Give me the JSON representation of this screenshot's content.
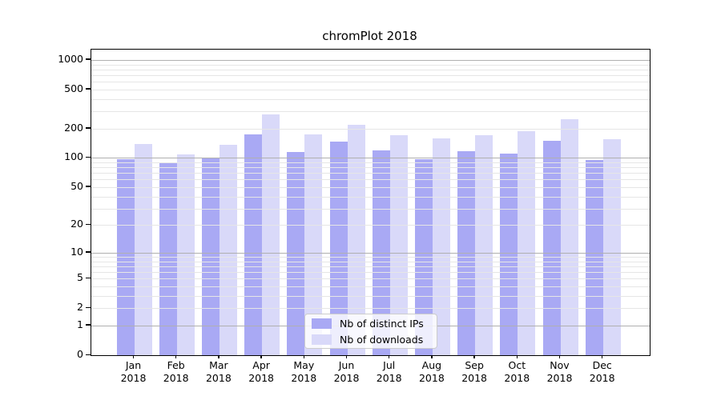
{
  "title": "chromPlot 2018",
  "colors": {
    "ips": "#a9a9f4",
    "downloads": "#d9d9f9",
    "grid_major": "#b0b0b0",
    "grid_minor": "#e6e6e6",
    "spine": "#000000",
    "legend_border": "#cccccc"
  },
  "legend": {
    "items": [
      {
        "label": "Nb of distinct IPs",
        "color_key": "ips"
      },
      {
        "label": "Nb of downloads",
        "color_key": "downloads"
      }
    ]
  },
  "chart_data": {
    "type": "bar",
    "title": "chromPlot 2018",
    "categories": [
      "Jan 2018",
      "Feb 2018",
      "Mar 2018",
      "Apr 2018",
      "May 2018",
      "Jun 2018",
      "Jul 2018",
      "Aug 2018",
      "Sep 2018",
      "Oct 2018",
      "Nov 2018",
      "Dec 2018"
    ],
    "x_tick_line1": [
      "Jan",
      "Feb",
      "Mar",
      "Apr",
      "May",
      "Jun",
      "Jul",
      "Aug",
      "Sep",
      "Oct",
      "Nov",
      "Dec"
    ],
    "x_tick_line2": [
      "2018",
      "2018",
      "2018",
      "2018",
      "2018",
      "2018",
      "2018",
      "2018",
      "2018",
      "2018",
      "2018",
      "2018"
    ],
    "series": [
      {
        "name": "Nb of distinct IPs",
        "values": [
          97,
          88,
          100,
          175,
          115,
          148,
          120,
          97,
          118,
          110,
          150,
          95
        ]
      },
      {
        "name": "Nb of downloads",
        "values": [
          138,
          108,
          137,
          277,
          175,
          220,
          172,
          160,
          172,
          188,
          247,
          156
        ]
      }
    ],
    "xlabel": "",
    "ylabel": "",
    "y_scale": "log10(1 + v)",
    "y_tick_values": [
      0,
      1,
      2,
      5,
      10,
      20,
      50,
      100,
      200,
      500,
      1000
    ],
    "y_tick_labels": [
      "0",
      "1",
      "2",
      "5",
      "10",
      "20",
      "50",
      "100",
      "200",
      "500",
      "1000"
    ],
    "y_major_grid_values": [
      1,
      10,
      100,
      1000
    ],
    "y_minor_grid_values": [
      2,
      3,
      4,
      5,
      6,
      7,
      8,
      9,
      20,
      30,
      40,
      50,
      60,
      70,
      80,
      90,
      200,
      300,
      400,
      500,
      600,
      700,
      800,
      900
    ],
    "ylim": [
      0,
      1270
    ],
    "grid": "on",
    "legend_position": "lower center"
  }
}
